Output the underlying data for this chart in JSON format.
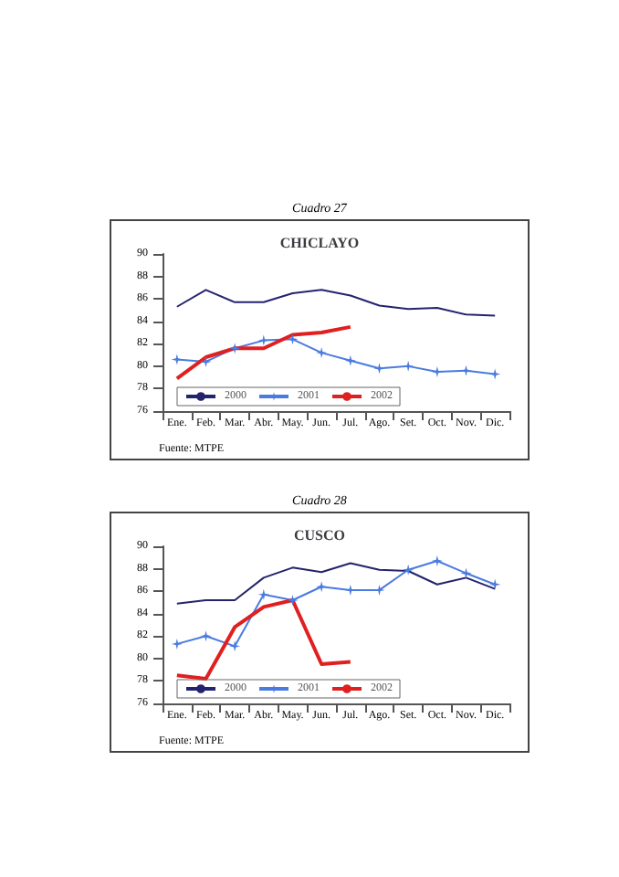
{
  "chart_data": [
    {
      "type": "line",
      "subtitle": "Cuadro 27",
      "title": "CHICLAYO",
      "annotations": [
        "Fuente: MTPE"
      ],
      "categories": [
        "Ene.",
        "Feb.",
        "Mar.",
        "Abr.",
        "May.",
        "Jun.",
        "Jul.",
        "Ago.",
        "Set.",
        "Oct.",
        "Nov.",
        "Dic."
      ],
      "ylim": [
        76,
        90
      ],
      "yticks": [
        76,
        78,
        80,
        82,
        84,
        86,
        88,
        90
      ],
      "grid": false,
      "legend": "bottom left",
      "series": [
        {
          "name": "2000",
          "color": "#24246e",
          "marker": "none",
          "values": [
            85.3,
            86.8,
            85.7,
            85.7,
            86.5,
            86.8,
            86.3,
            85.4,
            85.1,
            85.2,
            84.6,
            84.5
          ]
        },
        {
          "name": "2001",
          "color": "#4a7be0",
          "marker": "star",
          "values": [
            80.6,
            80.4,
            81.6,
            82.3,
            82.4,
            81.2,
            80.5,
            79.8,
            80.0,
            79.5,
            79.6,
            79.3
          ]
        },
        {
          "name": "2002",
          "color": "#e02020",
          "marker": "none",
          "values": [
            78.9,
            80.8,
            81.6,
            81.6,
            82.8,
            83.0,
            83.5,
            null,
            null,
            null,
            null,
            null
          ]
        }
      ]
    },
    {
      "type": "line",
      "subtitle": "Cuadro 28",
      "title": "CUSCO",
      "annotations": [
        "Fuente: MTPE"
      ],
      "categories": [
        "Ene.",
        "Feb.",
        "Mar.",
        "Abr.",
        "May.",
        "Jun.",
        "Jul.",
        "Ago.",
        "Set.",
        "Oct.",
        "Nov.",
        "Dic."
      ],
      "ylim": [
        76,
        90
      ],
      "yticks": [
        76,
        78,
        80,
        82,
        84,
        86,
        88,
        90
      ],
      "grid": false,
      "legend": "bottom left",
      "series": [
        {
          "name": "2000",
          "color": "#24246e",
          "marker": "none",
          "values": [
            84.9,
            85.2,
            85.2,
            87.2,
            88.1,
            87.7,
            88.5,
            87.9,
            87.8,
            86.6,
            87.2,
            86.2
          ]
        },
        {
          "name": "2001",
          "color": "#4a7be0",
          "marker": "star",
          "values": [
            81.3,
            82.0,
            81.1,
            85.7,
            85.2,
            86.4,
            86.1,
            86.1,
            87.9,
            88.7,
            87.6,
            86.6
          ]
        },
        {
          "name": "2002",
          "color": "#e02020",
          "marker": "none",
          "values": [
            78.5,
            78.2,
            82.8,
            84.6,
            85.2,
            79.5,
            79.7,
            null,
            null,
            null,
            null,
            null
          ]
        }
      ]
    }
  ]
}
